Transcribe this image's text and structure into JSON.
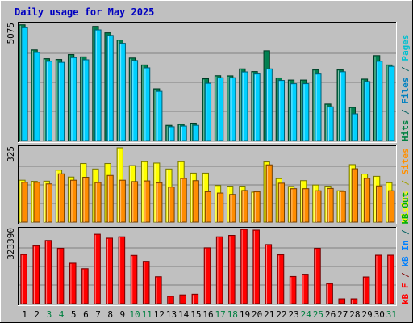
{
  "chart_data": {
    "type": "bar",
    "title": "Daily usage for May 2025",
    "categories": [
      "1",
      "2",
      "3",
      "4",
      "5",
      "6",
      "7",
      "8",
      "9",
      "10",
      "11",
      "12",
      "13",
      "14",
      "15",
      "16",
      "17",
      "18",
      "19",
      "20",
      "21",
      "22",
      "23",
      "24",
      "25",
      "26",
      "27",
      "28",
      "29",
      "30",
      "31"
    ],
    "weekend_days": [
      "3",
      "4",
      "10",
      "11",
      "17",
      "18",
      "24",
      "25",
      "31"
    ],
    "panels": [
      {
        "id": "top",
        "ymax_label": "5075",
        "ymax": 5075,
        "side_labels": [
          {
            "text": "Hits",
            "color": "#008040"
          },
          {
            "text": " / ",
            "color": "#006060"
          },
          {
            "text": "Files",
            "color": "#0080c0"
          },
          {
            "text": " / ",
            "color": "#006060"
          },
          {
            "text": "Pages",
            "color": "#00c0d0"
          }
        ],
        "series": [
          {
            "name": "Hits",
            "color": "#008050",
            "values": [
              5050,
              3956,
              3574,
              3540,
              3753,
              3653,
              4981,
              4702,
              4386,
              3603,
              3300,
              2256,
              663,
              706,
              758,
              2696,
              2829,
              2823,
              3127,
              3010,
              3917,
              2732,
              2641,
              2641,
              3091,
              1591,
              3091,
              1446,
              2682,
              3708,
              3300
            ]
          },
          {
            "name": "Files",
            "color": "#00d0ff",
            "values": [
              4923,
              3843,
              3461,
              3414,
              3621,
              3525,
              4828,
              4588,
              4242,
              3494,
              3174,
              2146,
              602,
              633,
              663,
              2498,
              2740,
              2741,
              2995,
              2905,
              3127,
              2623,
              2481,
              2483,
              2902,
              1472,
              3002,
              1163,
              2576,
              3461,
              3236
            ]
          }
        ]
      },
      {
        "id": "middle",
        "ymax_label": "325",
        "ymax": 325,
        "side_labels": [
          {
            "text": "Visits",
            "color": "#ffff00"
          },
          {
            "text": " / ",
            "color": "#a0a000"
          },
          {
            "text": "Sites",
            "color": "#ff9000"
          }
        ],
        "series": [
          {
            "name": "Visits",
            "color": "#ffff00",
            "values": [
              183,
              178,
              179,
              227,
              197,
              256,
              232,
              256,
              325,
              247,
              264,
              258,
              232,
              264,
              214,
              214,
              160,
              157,
              157,
              131,
              263,
              190,
              156,
              181,
              162,
              157,
              137,
              251,
              210,
              200,
              172
            ]
          },
          {
            "name": "Sites",
            "color": "#ff8c00",
            "values": [
              174,
              174,
              167,
              211,
              183,
              196,
              173,
              204,
              183,
              177,
              180,
              172,
              153,
              191,
              181,
              133,
              127,
              121,
              138,
              133,
              250,
              170,
              146,
              146,
              137,
              147,
              134,
              233,
              191,
              158,
              137
            ]
          }
        ]
      },
      {
        "id": "bottom",
        "ymax_label": "323390",
        "ymax": 323390,
        "side_labels": [
          {
            "text": "Visits",
            "color": "#ffff00"
          },
          {
            "text": " / ",
            "color": "#a0a000"
          },
          {
            "text": "Sites",
            "color": "#ff9000"
          }
        ],
        "side_labels_override": [
          {
            "text": "kB F",
            "color": "#ff0000"
          },
          {
            "text": " / ",
            "color": "#800000"
          },
          {
            "text": "kB In",
            "color": "#0080ff"
          },
          {
            "text": " / ",
            "color": "#006060"
          },
          {
            "text": "kB Out",
            "color": "#00b000"
          }
        ],
        "series": [
          {
            "name": "kB F",
            "color": "#ff0000",
            "values": [
              214000,
              252000,
              275000,
              241000,
              176000,
              152000,
              302000,
              285000,
              291000,
              210000,
              184000,
              117000,
              32000,
              38000,
              41000,
              243000,
              291000,
              297000,
              323390,
              320000,
              257000,
              213000,
              118000,
              128000,
              241000,
              87000,
              21000,
              21000,
              116000,
              211000,
              211000
            ]
          }
        ]
      }
    ]
  }
}
